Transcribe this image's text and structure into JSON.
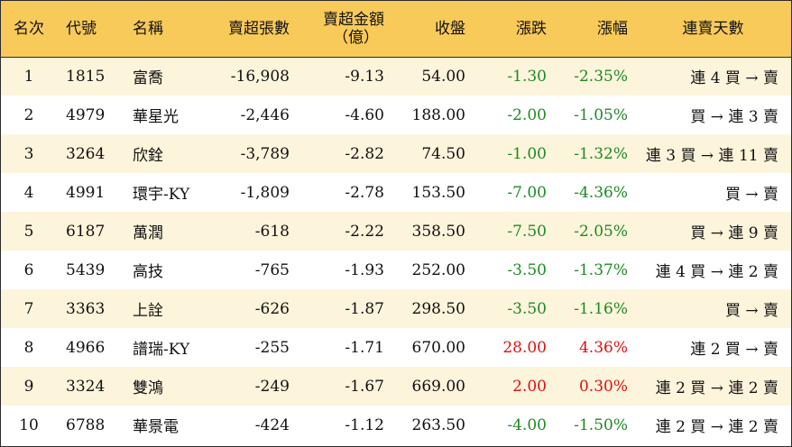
{
  "headers": {
    "rank": "名次",
    "code": "代號",
    "name": "名稱",
    "lots": "賣超張數",
    "amount_line1": "賣超金額",
    "amount_line2": "（億）",
    "close": "收盤",
    "change": "漲跌",
    "pct": "漲幅",
    "streak": "連賣天數"
  },
  "colors": {
    "header_bg": "#f8ca5a",
    "stripe_bg": "#fdf4dc",
    "up": "#e00f0f",
    "down": "#1c8a22"
  },
  "rows": [
    {
      "rank": "1",
      "code": "1815",
      "name": "富喬",
      "lots": "-16,908",
      "amount": "-9.13",
      "close": "54.00",
      "change": "-1.30",
      "pct": "-2.35%",
      "dir": "down",
      "streak": "連 4 買 → 賣"
    },
    {
      "rank": "2",
      "code": "4979",
      "name": "華星光",
      "lots": "-2,446",
      "amount": "-4.60",
      "close": "188.00",
      "change": "-2.00",
      "pct": "-1.05%",
      "dir": "down",
      "streak": "買 → 連 3 賣"
    },
    {
      "rank": "3",
      "code": "3264",
      "name": "欣銓",
      "lots": "-3,789",
      "amount": "-2.82",
      "close": "74.50",
      "change": "-1.00",
      "pct": "-1.32%",
      "dir": "down",
      "streak": "連 3 買 → 連 11 賣"
    },
    {
      "rank": "4",
      "code": "4991",
      "name": "環宇-KY",
      "lots": "-1,809",
      "amount": "-2.78",
      "close": "153.50",
      "change": "-7.00",
      "pct": "-4.36%",
      "dir": "down",
      "streak": "買 → 賣"
    },
    {
      "rank": "5",
      "code": "6187",
      "name": "萬潤",
      "lots": "-618",
      "amount": "-2.22",
      "close": "358.50",
      "change": "-7.50",
      "pct": "-2.05%",
      "dir": "down",
      "streak": "買 → 連 9 賣"
    },
    {
      "rank": "6",
      "code": "5439",
      "name": "高技",
      "lots": "-765",
      "amount": "-1.93",
      "close": "252.00",
      "change": "-3.50",
      "pct": "-1.37%",
      "dir": "down",
      "streak": "連 4 買 → 連 2 賣"
    },
    {
      "rank": "7",
      "code": "3363",
      "name": "上詮",
      "lots": "-626",
      "amount": "-1.87",
      "close": "298.50",
      "change": "-3.50",
      "pct": "-1.16%",
      "dir": "down",
      "streak": "買 → 賣"
    },
    {
      "rank": "8",
      "code": "4966",
      "name": "譜瑞-KY",
      "lots": "-255",
      "amount": "-1.71",
      "close": "670.00",
      "change": "28.00",
      "pct": "4.36%",
      "dir": "up",
      "streak": "連 2 買 → 賣"
    },
    {
      "rank": "9",
      "code": "3324",
      "name": "雙鴻",
      "lots": "-249",
      "amount": "-1.67",
      "close": "669.00",
      "change": "2.00",
      "pct": "0.30%",
      "dir": "up",
      "streak": "連 2 買 → 連 2 賣"
    },
    {
      "rank": "10",
      "code": "6788",
      "name": "華景電",
      "lots": "-424",
      "amount": "-1.12",
      "close": "263.50",
      "change": "-4.00",
      "pct": "-1.50%",
      "dir": "down",
      "streak": "連 2 買 → 連 2 賣"
    }
  ]
}
